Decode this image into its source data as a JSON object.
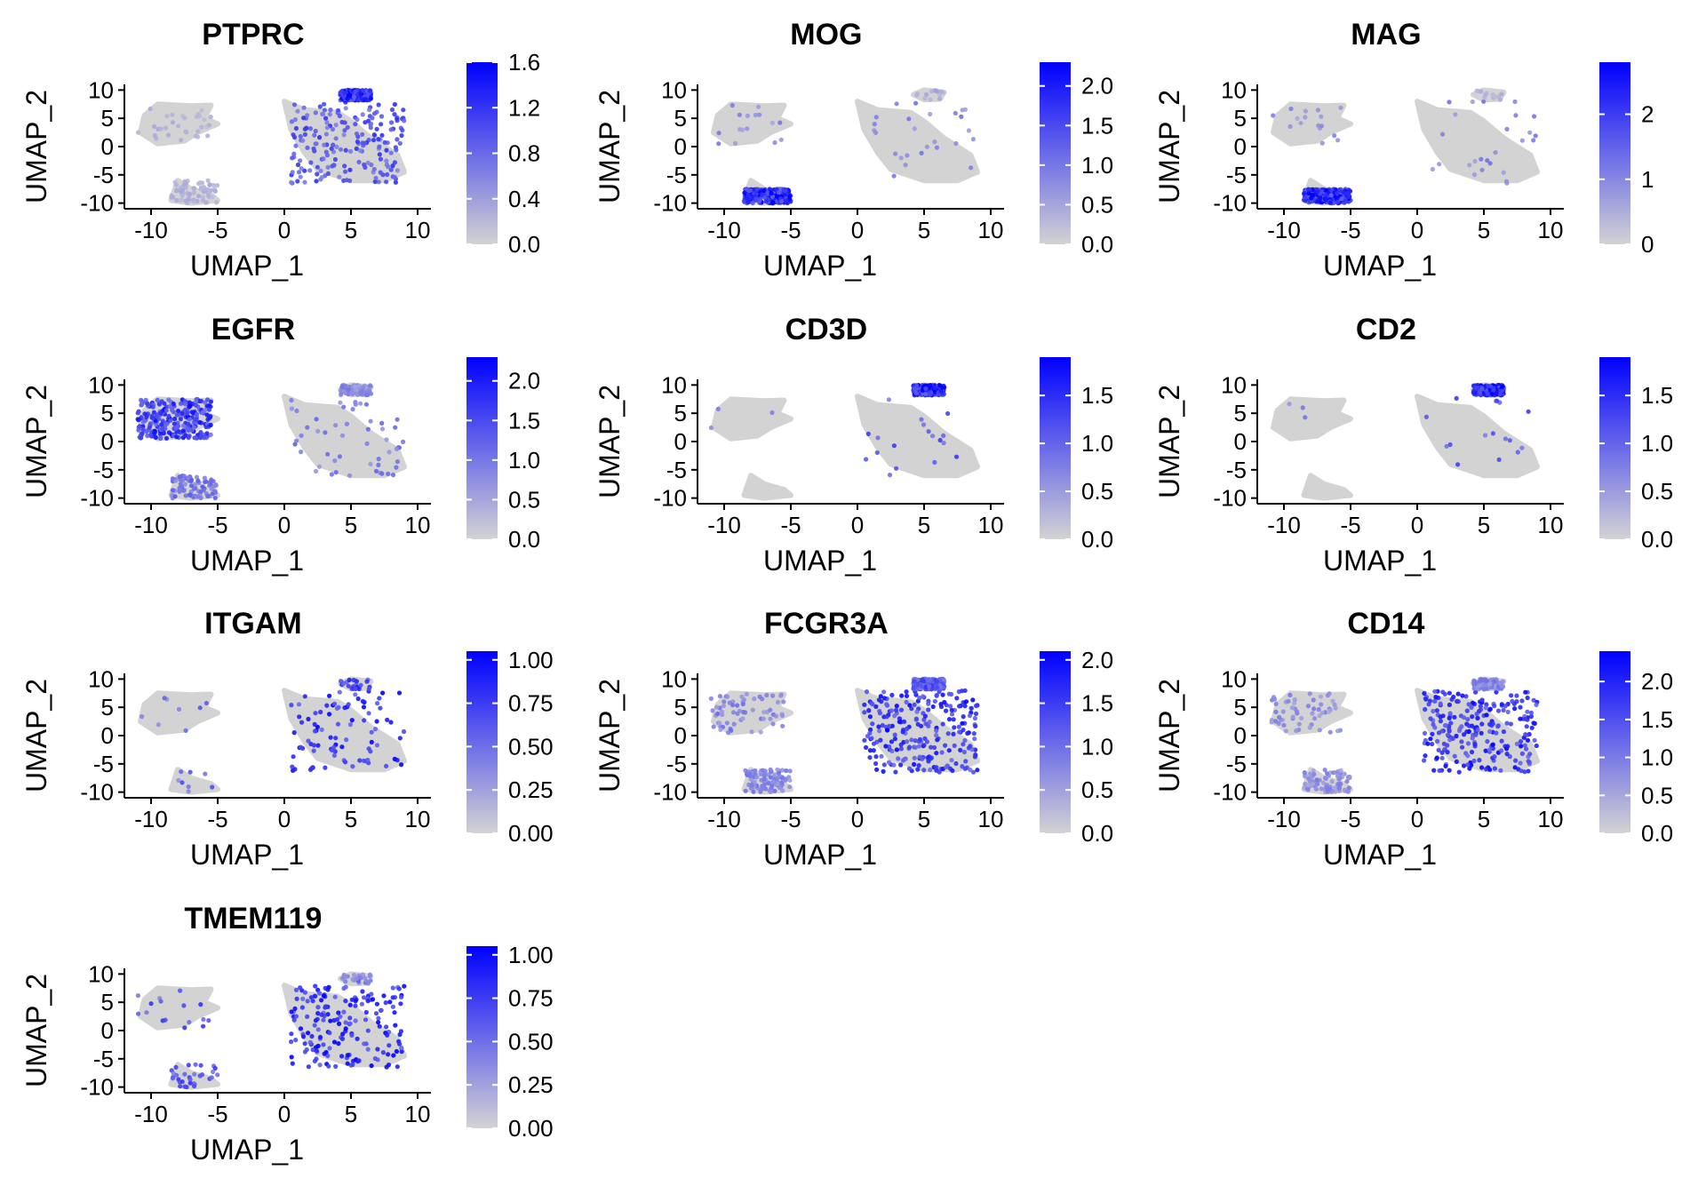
{
  "figure": {
    "layout": {
      "rows": 4,
      "cols": 3
    },
    "colors": {
      "low": "#d3d3d3",
      "high": "#0000ff",
      "axis": "#000000"
    }
  },
  "chart_data": [
    {
      "type": "scatter",
      "title": "PTPRC",
      "xlabel": "UMAP_1",
      "ylabel": "UMAP_2",
      "xlim": [
        -12,
        11
      ],
      "ylim": [
        -11,
        11
      ],
      "xticks": [
        -10,
        -5,
        0,
        5,
        10
      ],
      "yticks": [
        10,
        5,
        0,
        -5,
        -10
      ],
      "colorbar": {
        "min": 0,
        "max": 1.6,
        "ticks": [
          0.0,
          0.4,
          0.8,
          1.2,
          1.6
        ],
        "tick_labels": [
          "0.0",
          "0.4",
          "0.8",
          "1.2",
          "1.6"
        ]
      },
      "clusters": [
        {
          "x": [
            -11,
            -5.5
          ],
          "y": [
            0.5,
            7.5
          ],
          "expr": 0.3,
          "density": 0.12
        },
        {
          "x": [
            -8.5,
            -5
          ],
          "y": [
            -10,
            -6
          ],
          "expr": 0.3,
          "density": 0.25
        },
        {
          "x": [
            0.5,
            9
          ],
          "y": [
            -6.5,
            8
          ],
          "expr": 1.1,
          "density": 0.75
        },
        {
          "x": [
            4.2,
            6.5
          ],
          "y": [
            8.2,
            10
          ],
          "expr": 1.5,
          "density": 1.0
        }
      ]
    },
    {
      "type": "scatter",
      "title": "MOG",
      "xlabel": "UMAP_1",
      "ylabel": "UMAP_2",
      "xlim": [
        -12,
        11
      ],
      "ylim": [
        -11,
        11
      ],
      "xticks": [
        -10,
        -5,
        0,
        5,
        10
      ],
      "yticks": [
        10,
        5,
        0,
        -5,
        -10
      ],
      "colorbar": {
        "min": 0,
        "max": 2.3,
        "ticks": [
          0.0,
          0.5,
          1.0,
          1.5,
          2.0
        ],
        "tick_labels": [
          "0.0",
          "0.5",
          "1.0",
          "1.5",
          "2.0"
        ]
      },
      "clusters": [
        {
          "x": [
            -11,
            -5.5
          ],
          "y": [
            0.5,
            7.5
          ],
          "expr": 0.9,
          "density": 0.06
        },
        {
          "x": [
            -8.5,
            -5
          ],
          "y": [
            -10,
            -7.5
          ],
          "expr": 2.1,
          "density": 1.0
        },
        {
          "x": [
            0.5,
            9
          ],
          "y": [
            -6.5,
            8
          ],
          "expr": 1.0,
          "density": 0.1
        },
        {
          "x": [
            4.2,
            6.5
          ],
          "y": [
            8.2,
            10
          ],
          "expr": 0.5,
          "density": 0.05
        }
      ]
    },
    {
      "type": "scatter",
      "title": "MAG",
      "xlabel": "UMAP_1",
      "ylabel": "UMAP_2",
      "xlim": [
        -12,
        11
      ],
      "ylim": [
        -11,
        11
      ],
      "xticks": [
        -10,
        -5,
        0,
        5,
        10
      ],
      "yticks": [
        10,
        5,
        0,
        -5,
        -10
      ],
      "colorbar": {
        "min": 0,
        "max": 2.8,
        "ticks": [
          0,
          1,
          2
        ],
        "tick_labels": [
          "0",
          "1",
          "2"
        ]
      },
      "clusters": [
        {
          "x": [
            -11,
            -5.5
          ],
          "y": [
            0.5,
            7.5
          ],
          "expr": 1.0,
          "density": 0.06
        },
        {
          "x": [
            -8.5,
            -5
          ],
          "y": [
            -10,
            -7.5
          ],
          "expr": 2.5,
          "density": 1.0
        },
        {
          "x": [
            0.5,
            9
          ],
          "y": [
            -6.5,
            8
          ],
          "expr": 1.2,
          "density": 0.1
        },
        {
          "x": [
            4.2,
            6.5
          ],
          "y": [
            8.2,
            10
          ],
          "expr": 0.5,
          "density": 0.05
        }
      ]
    },
    {
      "type": "scatter",
      "title": "EGFR",
      "xlabel": "UMAP_1",
      "ylabel": "UMAP_2",
      "xlim": [
        -12,
        11
      ],
      "ylim": [
        -11,
        11
      ],
      "xticks": [
        -10,
        -5,
        0,
        5,
        10
      ],
      "yticks": [
        10,
        5,
        0,
        -5,
        -10
      ],
      "colorbar": {
        "min": 0,
        "max": 2.3,
        "ticks": [
          0.0,
          0.5,
          1.0,
          1.5,
          2.0
        ],
        "tick_labels": [
          "0.0",
          "0.5",
          "1.0",
          "1.5",
          "2.0"
        ]
      },
      "clusters": [
        {
          "x": [
            -11,
            -5.5
          ],
          "y": [
            0.5,
            7.5
          ],
          "expr": 1.9,
          "density": 1.0
        },
        {
          "x": [
            -8.5,
            -5
          ],
          "y": [
            -10,
            -6
          ],
          "expr": 1.2,
          "density": 0.3
        },
        {
          "x": [
            0.5,
            9
          ],
          "y": [
            -6.5,
            8
          ],
          "expr": 1.1,
          "density": 0.2
        },
        {
          "x": [
            4.2,
            6.5
          ],
          "y": [
            8.2,
            10
          ],
          "expr": 0.9,
          "density": 0.3
        }
      ]
    },
    {
      "type": "scatter",
      "title": "CD3D",
      "xlabel": "UMAP_1",
      "ylabel": "UMAP_2",
      "xlim": [
        -12,
        11
      ],
      "ylim": [
        -11,
        11
      ],
      "xticks": [
        -10,
        -5,
        0,
        5,
        10
      ],
      "yticks": [
        10,
        5,
        0,
        -5,
        -10
      ],
      "colorbar": {
        "min": 0,
        "max": 1.9,
        "ticks": [
          0.0,
          0.5,
          1.0,
          1.5
        ],
        "tick_labels": [
          "0.0",
          "0.5",
          "1.0",
          "1.5"
        ]
      },
      "clusters": [
        {
          "x": [
            -11,
            -5.5
          ],
          "y": [
            0.5,
            7.5
          ],
          "expr": 0.8,
          "density": 0.01
        },
        {
          "x": [
            -8.5,
            -5
          ],
          "y": [
            -10,
            -6
          ],
          "expr": 0.5,
          "density": 0.0
        },
        {
          "x": [
            0.5,
            9
          ],
          "y": [
            -6.5,
            8
          ],
          "expr": 1.2,
          "density": 0.07
        },
        {
          "x": [
            4.2,
            6.5
          ],
          "y": [
            8.2,
            10
          ],
          "expr": 1.8,
          "density": 1.0
        }
      ]
    },
    {
      "type": "scatter",
      "title": "CD2",
      "xlabel": "UMAP_1",
      "ylabel": "UMAP_2",
      "xlim": [
        -12,
        11
      ],
      "ylim": [
        -11,
        11
      ],
      "xticks": [
        -10,
        -5,
        0,
        5,
        10
      ],
      "yticks": [
        10,
        5,
        0,
        -5,
        -10
      ],
      "colorbar": {
        "min": 0,
        "max": 1.9,
        "ticks": [
          0.0,
          0.5,
          1.0,
          1.5
        ],
        "tick_labels": [
          "0.0",
          "0.5",
          "1.0",
          "1.5"
        ]
      },
      "clusters": [
        {
          "x": [
            -11,
            -5.5
          ],
          "y": [
            0.5,
            7.5
          ],
          "expr": 0.8,
          "density": 0.01
        },
        {
          "x": [
            -8.5,
            -5
          ],
          "y": [
            -10,
            -6
          ],
          "expr": 0.5,
          "density": 0.0
        },
        {
          "x": [
            0.5,
            9
          ],
          "y": [
            -6.5,
            8
          ],
          "expr": 1.2,
          "density": 0.06
        },
        {
          "x": [
            4.2,
            6.5
          ],
          "y": [
            8.2,
            10
          ],
          "expr": 1.8,
          "density": 1.0
        }
      ]
    },
    {
      "type": "scatter",
      "title": "ITGAM",
      "xlabel": "UMAP_1",
      "ylabel": "UMAP_2",
      "xlim": [
        -12,
        11
      ],
      "ylim": [
        -11,
        11
      ],
      "xticks": [
        -10,
        -5,
        0,
        5,
        10
      ],
      "yticks": [
        10,
        5,
        0,
        -5,
        -10
      ],
      "colorbar": {
        "min": 0,
        "max": 1.05,
        "ticks": [
          0.0,
          0.25,
          0.5,
          0.75,
          1.0
        ],
        "tick_labels": [
          "0.00",
          "0.25",
          "0.50",
          "0.75",
          "1.00"
        ]
      },
      "clusters": [
        {
          "x": [
            -11,
            -5.5
          ],
          "y": [
            0.5,
            7.5
          ],
          "expr": 0.6,
          "density": 0.03
        },
        {
          "x": [
            -8.5,
            -5
          ],
          "y": [
            -10,
            -6
          ],
          "expr": 0.6,
          "density": 0.03
        },
        {
          "x": [
            0.5,
            9
          ],
          "y": [
            -6.5,
            8
          ],
          "expr": 0.95,
          "density": 0.35
        },
        {
          "x": [
            4.2,
            6.5
          ],
          "y": [
            8.2,
            10
          ],
          "expr": 0.8,
          "density": 0.1
        }
      ]
    },
    {
      "type": "scatter",
      "title": "FCGR3A",
      "xlabel": "UMAP_1",
      "ylabel": "UMAP_2",
      "xlim": [
        -12,
        11
      ],
      "ylim": [
        -11,
        11
      ],
      "xticks": [
        -10,
        -5,
        0,
        5,
        10
      ],
      "yticks": [
        10,
        5,
        0,
        -5,
        -10
      ],
      "colorbar": {
        "min": 0,
        "max": 2.1,
        "ticks": [
          0.0,
          0.5,
          1.0,
          1.5,
          2.0
        ],
        "tick_labels": [
          "0.0",
          "0.5",
          "1.0",
          "1.5",
          "2.0"
        ]
      },
      "clusters": [
        {
          "x": [
            -11,
            -5.5
          ],
          "y": [
            0.5,
            7.5
          ],
          "expr": 0.9,
          "density": 0.25
        },
        {
          "x": [
            -8.5,
            -5
          ],
          "y": [
            -10,
            -6
          ],
          "expr": 0.9,
          "density": 0.35
        },
        {
          "x": [
            0.5,
            9
          ],
          "y": [
            -6.5,
            8
          ],
          "expr": 1.8,
          "density": 0.95
        },
        {
          "x": [
            4.2,
            6.5
          ],
          "y": [
            8.2,
            10
          ],
          "expr": 1.4,
          "density": 0.8
        }
      ]
    },
    {
      "type": "scatter",
      "title": "CD14",
      "xlabel": "UMAP_1",
      "ylabel": "UMAP_2",
      "xlim": [
        -12,
        11
      ],
      "ylim": [
        -11,
        11
      ],
      "xticks": [
        -10,
        -5,
        0,
        5,
        10
      ],
      "yticks": [
        10,
        5,
        0,
        -5,
        -10
      ],
      "colorbar": {
        "min": 0,
        "max": 2.4,
        "ticks": [
          0.0,
          0.5,
          1.0,
          1.5,
          2.0
        ],
        "tick_labels": [
          "0.0",
          "0.5",
          "1.0",
          "1.5",
          "2.0"
        ]
      },
      "clusters": [
        {
          "x": [
            -11,
            -5.5
          ],
          "y": [
            0.5,
            7.5
          ],
          "expr": 0.9,
          "density": 0.22
        },
        {
          "x": [
            -8.5,
            -5
          ],
          "y": [
            -10,
            -6
          ],
          "expr": 0.9,
          "density": 0.3
        },
        {
          "x": [
            0.5,
            9
          ],
          "y": [
            -6.5,
            8
          ],
          "expr": 2.1,
          "density": 0.95
        },
        {
          "x": [
            4.2,
            6.5
          ],
          "y": [
            8.2,
            10
          ],
          "expr": 1.0,
          "density": 0.4
        }
      ]
    },
    {
      "type": "scatter",
      "title": "TMEM119",
      "xlabel": "UMAP_1",
      "ylabel": "UMAP_2",
      "xlim": [
        -12,
        11
      ],
      "ylim": [
        -11,
        11
      ],
      "xticks": [
        -10,
        -5,
        0,
        5,
        10
      ],
      "yticks": [
        10,
        5,
        0,
        -5,
        -10
      ],
      "colorbar": {
        "min": 0,
        "max": 1.05,
        "ticks": [
          0.0,
          0.25,
          0.5,
          0.75,
          1.0
        ],
        "tick_labels": [
          "0.00",
          "0.25",
          "0.50",
          "0.75",
          "1.00"
        ]
      },
      "clusters": [
        {
          "x": [
            -11,
            -5.5
          ],
          "y": [
            0.5,
            7.5
          ],
          "expr": 0.7,
          "density": 0.06
        },
        {
          "x": [
            -8.5,
            -5
          ],
          "y": [
            -10,
            -6
          ],
          "expr": 0.7,
          "density": 0.12
        },
        {
          "x": [
            0.5,
            9
          ],
          "y": [
            -6.5,
            8
          ],
          "expr": 0.95,
          "density": 0.7
        },
        {
          "x": [
            4.2,
            6.5
          ],
          "y": [
            8.2,
            10
          ],
          "expr": 0.5,
          "density": 0.1
        }
      ]
    }
  ]
}
